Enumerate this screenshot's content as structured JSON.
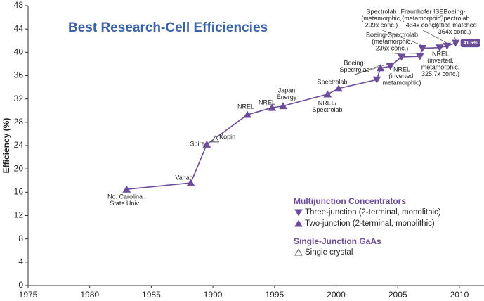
{
  "chart_data": {
    "type": "record-line",
    "title": "Best Research-Cell Efficiencies",
    "y_label": "Efficiency (%)",
    "color": "#6b4c9a",
    "xlim": [
      1975,
      2012
    ],
    "xticks": [
      1975,
      1980,
      1985,
      1990,
      1995,
      2000,
      2005,
      2010
    ],
    "ylim": [
      0,
      48
    ],
    "yticks": [
      0,
      4,
      8,
      12,
      16,
      20,
      24,
      28,
      32,
      36,
      40,
      44,
      48
    ],
    "grid": false,
    "points": [
      {
        "x": 1983.0,
        "y": 16.5,
        "marker": "up",
        "label": [
          "No. Carolina",
          "State Univ."
        ]
      },
      {
        "x": 1988.2,
        "y": 17.6,
        "marker": "up",
        "label": [
          "Varian"
        ]
      },
      {
        "x": 1989.5,
        "y": 24.2,
        "marker": "up",
        "label": [
          "Spire"
        ]
      },
      {
        "x": 1992.8,
        "y": 29.3,
        "marker": "up",
        "label": [
          "NREL"
        ]
      },
      {
        "x": 1994.8,
        "y": 30.5,
        "marker": "up",
        "label": [
          "NREL"
        ]
      },
      {
        "x": 1995.7,
        "y": 30.8,
        "marker": "up",
        "label": [
          "Japan",
          "Energy"
        ]
      },
      {
        "x": 1999.3,
        "y": 32.8,
        "marker": "up",
        "label": [
          "NREL/",
          "Spectrolab"
        ]
      },
      {
        "x": 2000.2,
        "y": 33.8,
        "marker": "up",
        "label": [
          "Spectrolab"
        ]
      },
      {
        "x": 2003.3,
        "y": 35.3,
        "marker": "down",
        "label": [
          "NREL",
          "(inverted,",
          "metamorphic)"
        ]
      },
      {
        "x": 2003.6,
        "y": 37.3,
        "marker": "up",
        "label": [
          "Boeing-",
          "Spectrolab"
        ]
      },
      {
        "x": 2004.4,
        "y": 37.6,
        "marker": "down"
      },
      {
        "x": 2005.3,
        "y": 39.2,
        "marker": "down",
        "label": [
          "Boeing-Spectrolab",
          "(metamorphic,",
          "236x conc.)"
        ]
      },
      {
        "x": 2006.8,
        "y": 39.3,
        "marker": "down"
      },
      {
        "x": 2007.0,
        "y": 40.7,
        "marker": "down",
        "label": [
          "Spectrolab",
          "(metamorphic,",
          "299x conc.)"
        ]
      },
      {
        "x": 2008.4,
        "y": 40.8,
        "marker": "down",
        "label": [
          "NREL",
          "(inverted,",
          "metamorphic,",
          "325.7x conc.)"
        ]
      },
      {
        "x": 2009.0,
        "y": 41.1,
        "marker": "down",
        "label": [
          "Fraunhofer ISE",
          "(metamorphic,",
          "454x conc.)"
        ]
      },
      {
        "x": 2009.7,
        "y": 41.6,
        "marker": "down",
        "label": [
          "Boeing-",
          "Spectrolab",
          "(lattice matched",
          "364x conc.)"
        ],
        "value_label": "41.6%"
      }
    ],
    "single_points": [
      {
        "x": 1990.2,
        "y": 25.1,
        "marker": "open-up",
        "label": [
          "Kopin"
        ]
      }
    ],
    "legend": [
      {
        "heading": "Multijunction Concentrators",
        "entries": [
          {
            "marker": "down",
            "name": "Three-junction (2-terminal, monolithic)"
          },
          {
            "marker": "up",
            "name": "Two-junction (2-terminal, monolithic)"
          }
        ]
      },
      {
        "heading": "Single-Junction GaAs",
        "entries": [
          {
            "marker": "open-up",
            "name": "Single crystal"
          }
        ]
      }
    ]
  }
}
